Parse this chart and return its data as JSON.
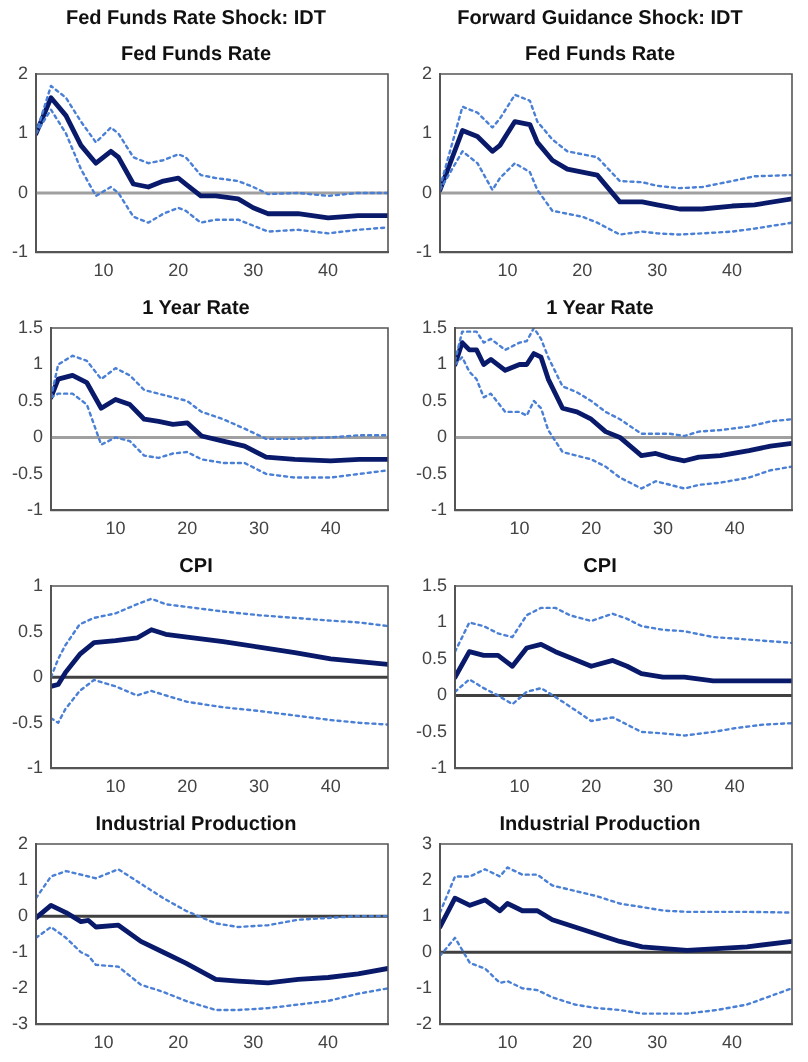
{
  "chart_data": [
    {
      "type": "line",
      "title": "Fed Funds Rate Shock: IDT",
      "subtitle": "Fed Funds Rate",
      "x": [
        1,
        3,
        5,
        7,
        9,
        11,
        12,
        14,
        16,
        18,
        20,
        21,
        23,
        25,
        28,
        30,
        32,
        36,
        40,
        44,
        48
      ],
      "xlim": [
        1,
        48
      ],
      "xticks": [
        10,
        20,
        30,
        40
      ],
      "ylim": [
        -1,
        2
      ],
      "yticks": [
        -1,
        0,
        1,
        2
      ],
      "ref_lines": [
        {
          "axis": "y",
          "value": 0,
          "color": "#a0a0a0"
        }
      ],
      "series": [
        {
          "color": "#4a7fd6",
          "line_style": "dotted",
          "values": [
            1.0,
            1.8,
            1.6,
            1.2,
            0.85,
            1.1,
            1.0,
            0.6,
            0.5,
            0.55,
            0.65,
            0.6,
            0.3,
            0.25,
            0.2,
            0.1,
            -0.02,
            0,
            -0.05,
            0,
            0
          ]
        },
        {
          "color": "#4a7fd6",
          "line_style": "dotted",
          "values": [
            1.0,
            1.4,
            1.0,
            0.4,
            -0.05,
            0.1,
            0.0,
            -0.4,
            -0.5,
            -0.35,
            -0.25,
            -0.3,
            -0.5,
            -0.45,
            -0.45,
            -0.55,
            -0.65,
            -0.62,
            -0.68,
            -0.62,
            -0.58
          ]
        },
        {
          "color": "#0a1a6b",
          "line_style": "solid",
          "values": [
            1.0,
            1.6,
            1.3,
            0.8,
            0.5,
            0.7,
            0.6,
            0.15,
            0.1,
            0.2,
            0.25,
            0.15,
            -0.05,
            -0.05,
            -0.1,
            -0.25,
            -0.35,
            -0.35,
            -0.42,
            -0.38,
            -0.38
          ]
        }
      ]
    },
    {
      "type": "line",
      "title": "Forward Guidance Shock: IDT",
      "subtitle": "Fed Funds Rate",
      "x": [
        1,
        4,
        6,
        8,
        9,
        11,
        13,
        14,
        16,
        18,
        20,
        22,
        25,
        28,
        30,
        33,
        36,
        40,
        43,
        48
      ],
      "xlim": [
        1,
        48
      ],
      "xticks": [
        10,
        20,
        30,
        40
      ],
      "ylim": [
        -1,
        2
      ],
      "yticks": [
        -1,
        0,
        1,
        2
      ],
      "ref_lines": [
        {
          "axis": "y",
          "value": 0,
          "color": "#a0a0a0"
        }
      ],
      "series": [
        {
          "color": "#4a7fd6",
          "line_style": "dotted",
          "values": [
            0.1,
            1.45,
            1.35,
            1.1,
            1.25,
            1.65,
            1.55,
            1.2,
            0.9,
            0.7,
            0.65,
            0.6,
            0.2,
            0.18,
            0.12,
            0.08,
            0.1,
            0.2,
            0.28,
            0.3
          ]
        },
        {
          "color": "#4a7fd6",
          "line_style": "dotted",
          "values": [
            0.05,
            0.7,
            0.5,
            0.05,
            0.25,
            0.5,
            0.35,
            0.05,
            -0.3,
            -0.35,
            -0.4,
            -0.5,
            -0.7,
            -0.65,
            -0.68,
            -0.7,
            -0.68,
            -0.65,
            -0.6,
            -0.5
          ]
        },
        {
          "color": "#0a1a6b",
          "line_style": "solid",
          "values": [
            0.05,
            1.05,
            0.95,
            0.7,
            0.8,
            1.2,
            1.15,
            0.85,
            0.55,
            0.4,
            0.35,
            0.3,
            -0.15,
            -0.15,
            -0.2,
            -0.27,
            -0.27,
            -0.22,
            -0.2,
            -0.1
          ]
        }
      ]
    },
    {
      "type": "line",
      "title": "1 Year Rate",
      "x": [
        1,
        2,
        4,
        6,
        8,
        10,
        12,
        14,
        16,
        18,
        20,
        22,
        25,
        28,
        31,
        35,
        40,
        44,
        48
      ],
      "xlim": [
        1,
        48
      ],
      "xticks": [
        10,
        20,
        30,
        40
      ],
      "ylim": [
        -1,
        1.5
      ],
      "yticks": [
        -1,
        -0.5,
        0,
        0.5,
        1,
        1.5
      ],
      "ref_lines": [
        {
          "axis": "y",
          "value": 0,
          "color": "#a0a0a0"
        }
      ],
      "series": [
        {
          "color": "#4a7fd6",
          "line_style": "dotted",
          "values": [
            0.55,
            1.0,
            1.12,
            1.05,
            0.8,
            0.95,
            0.85,
            0.65,
            0.6,
            0.55,
            0.5,
            0.35,
            0.25,
            0.12,
            -0.02,
            -0.02,
            0,
            0.03,
            0.03
          ]
        },
        {
          "color": "#4a7fd6",
          "line_style": "dotted",
          "values": [
            0.55,
            0.6,
            0.6,
            0.45,
            -0.1,
            0.0,
            -0.05,
            -0.25,
            -0.28,
            -0.22,
            -0.2,
            -0.3,
            -0.35,
            -0.35,
            -0.5,
            -0.55,
            -0.55,
            -0.5,
            -0.45
          ]
        },
        {
          "color": "#0a1a6b",
          "line_style": "solid",
          "values": [
            0.55,
            0.8,
            0.85,
            0.75,
            0.4,
            0.52,
            0.45,
            0.25,
            0.22,
            0.18,
            0.2,
            0.02,
            -0.05,
            -0.12,
            -0.27,
            -0.3,
            -0.32,
            -0.3,
            -0.3
          ]
        }
      ]
    },
    {
      "type": "line",
      "title": "1 Year Rate",
      "x": [
        1,
        2,
        3,
        4,
        5,
        6,
        8,
        10,
        11,
        12,
        13,
        14,
        16,
        18,
        20,
        22,
        24,
        27,
        29,
        31,
        33,
        35,
        38,
        42,
        45,
        48
      ],
      "xlim": [
        1,
        48
      ],
      "xticks": [
        10,
        20,
        30,
        40
      ],
      "ylim": [
        -1,
        1.5
      ],
      "yticks": [
        -1,
        -0.5,
        0,
        0.5,
        1,
        1.5
      ],
      "ref_lines": [
        {
          "axis": "y",
          "value": 0,
          "color": "#a0a0a0"
        }
      ],
      "series": [
        {
          "color": "#4a7fd6",
          "line_style": "dotted",
          "values": [
            1.05,
            1.45,
            1.45,
            1.45,
            1.3,
            1.35,
            1.2,
            1.3,
            1.32,
            1.5,
            1.35,
            1.1,
            0.7,
            0.62,
            0.5,
            0.35,
            0.25,
            0.05,
            0.05,
            0.05,
            0.02,
            0.08,
            0.1,
            0.15,
            0.22,
            0.25
          ]
        },
        {
          "color": "#4a7fd6",
          "line_style": "dotted",
          "values": [
            1.0,
            1.1,
            0.9,
            0.8,
            0.55,
            0.6,
            0.35,
            0.35,
            0.3,
            0.5,
            0.4,
            0.1,
            -0.2,
            -0.25,
            -0.3,
            -0.4,
            -0.55,
            -0.7,
            -0.6,
            -0.65,
            -0.7,
            -0.65,
            -0.62,
            -0.55,
            -0.45,
            -0.4
          ]
        },
        {
          "color": "#0a1a6b",
          "line_style": "solid",
          "values": [
            1.0,
            1.3,
            1.2,
            1.2,
            1.0,
            1.07,
            0.92,
            1.0,
            1.0,
            1.15,
            1.1,
            0.8,
            0.4,
            0.35,
            0.25,
            0.08,
            0.0,
            -0.25,
            -0.22,
            -0.28,
            -0.32,
            -0.27,
            -0.25,
            -0.18,
            -0.12,
            -0.08
          ]
        }
      ]
    },
    {
      "type": "line",
      "title": "CPI",
      "x": [
        1,
        2,
        3,
        5,
        7,
        10,
        13,
        15,
        17,
        20,
        25,
        30,
        35,
        40,
        44,
        48
      ],
      "xlim": [
        1,
        48
      ],
      "xticks": [
        10,
        20,
        30,
        40
      ],
      "ylim": [
        -1,
        1
      ],
      "yticks": [
        -1,
        -0.5,
        0,
        0.5,
        1
      ],
      "ref_lines": [
        {
          "axis": "y",
          "value": 0,
          "color": "#404040"
        }
      ],
      "series": [
        {
          "color": "#4a7fd6",
          "line_style": "dotted",
          "values": [
            0,
            0.2,
            0.35,
            0.58,
            0.65,
            0.7,
            0.8,
            0.86,
            0.8,
            0.77,
            0.72,
            0.68,
            0.65,
            0.62,
            0.6,
            0.56
          ]
        },
        {
          "color": "#4a7fd6",
          "line_style": "dotted",
          "values": [
            -0.45,
            -0.5,
            -0.35,
            -0.15,
            -0.03,
            -0.1,
            -0.2,
            -0.15,
            -0.2,
            -0.27,
            -0.33,
            -0.37,
            -0.42,
            -0.47,
            -0.5,
            -0.52
          ]
        },
        {
          "color": "#0a1a6b",
          "line_style": "solid",
          "values": [
            -0.1,
            -0.08,
            0.05,
            0.25,
            0.38,
            0.4,
            0.43,
            0.52,
            0.47,
            0.44,
            0.39,
            0.33,
            0.27,
            0.2,
            0.17,
            0.14
          ]
        }
      ]
    },
    {
      "type": "line",
      "title": "CPI",
      "x": [
        1,
        3,
        5,
        7,
        9,
        11,
        13,
        15,
        17,
        20,
        23,
        25,
        27,
        30,
        33,
        37,
        40,
        44,
        48
      ],
      "xlim": [
        1,
        48
      ],
      "xticks": [
        10,
        20,
        30,
        40
      ],
      "ylim": [
        -1,
        1.5
      ],
      "yticks": [
        -1,
        -0.5,
        0,
        0.5,
        1,
        1.5
      ],
      "ref_lines": [
        {
          "axis": "y",
          "value": 0,
          "color": "#404040"
        }
      ],
      "series": [
        {
          "color": "#4a7fd6",
          "line_style": "dotted",
          "values": [
            0.6,
            1.0,
            0.95,
            0.85,
            0.8,
            1.1,
            1.2,
            1.2,
            1.1,
            1.02,
            1.12,
            1.05,
            0.95,
            0.9,
            0.88,
            0.8,
            0.78,
            0.75,
            0.72
          ]
        },
        {
          "color": "#4a7fd6",
          "line_style": "dotted",
          "values": [
            0.05,
            0.22,
            0.1,
            0.0,
            -0.12,
            0.05,
            0.1,
            -0.02,
            -0.15,
            -0.35,
            -0.3,
            -0.4,
            -0.5,
            -0.52,
            -0.55,
            -0.5,
            -0.45,
            -0.4,
            -0.38
          ]
        },
        {
          "color": "#0a1a6b",
          "line_style": "solid",
          "values": [
            0.25,
            0.6,
            0.55,
            0.55,
            0.4,
            0.65,
            0.7,
            0.6,
            0.52,
            0.4,
            0.48,
            0.4,
            0.3,
            0.25,
            0.25,
            0.2,
            0.2,
            0.2,
            0.2
          ]
        }
      ]
    },
    {
      "type": "line",
      "title": "Industrial Production",
      "x": [
        1,
        3,
        5,
        7,
        8,
        9,
        12,
        15,
        18,
        21,
        25,
        28,
        32,
        36,
        40,
        44,
        48
      ],
      "xlim": [
        1,
        48
      ],
      "xticks": [
        10,
        20,
        30,
        40
      ],
      "ylim": [
        -3,
        2
      ],
      "yticks": [
        -3,
        -2,
        -1,
        0,
        1,
        2
      ],
      "ref_lines": [
        {
          "axis": "y",
          "value": 0,
          "color": "#404040"
        }
      ],
      "series": [
        {
          "color": "#4a7fd6",
          "line_style": "dotted",
          "values": [
            0.5,
            1.1,
            1.25,
            1.15,
            1.1,
            1.05,
            1.3,
            0.9,
            0.5,
            0.15,
            -0.2,
            -0.3,
            -0.25,
            -0.1,
            -0.05,
            0,
            0
          ]
        },
        {
          "color": "#4a7fd6",
          "line_style": "dotted",
          "values": [
            -0.6,
            -0.3,
            -0.6,
            -1.0,
            -1.1,
            -1.35,
            -1.4,
            -1.9,
            -2.1,
            -2.35,
            -2.6,
            -2.6,
            -2.55,
            -2.45,
            -2.35,
            -2.15,
            -2.0
          ]
        },
        {
          "color": "#0a1a6b",
          "line_style": "solid",
          "values": [
            -0.05,
            0.3,
            0.1,
            -0.15,
            -0.12,
            -0.3,
            -0.25,
            -0.7,
            -1.0,
            -1.3,
            -1.75,
            -1.8,
            -1.85,
            -1.75,
            -1.7,
            -1.6,
            -1.45
          ]
        }
      ]
    },
    {
      "type": "line",
      "title": "Industrial Production",
      "x": [
        1,
        3,
        5,
        7,
        9,
        10,
        12,
        14,
        16,
        19,
        22,
        25,
        28,
        31,
        34,
        38,
        42,
        48
      ],
      "xlim": [
        1,
        48
      ],
      "xticks": [
        10,
        20,
        30,
        40
      ],
      "ylim": [
        -2,
        3
      ],
      "yticks": [
        -2,
        -1,
        0,
        1,
        2,
        3
      ],
      "ref_lines": [
        {
          "axis": "y",
          "value": 0,
          "color": "#404040"
        }
      ],
      "series": [
        {
          "color": "#4a7fd6",
          "line_style": "dotted",
          "values": [
            1.1,
            2.1,
            2.1,
            2.3,
            2.1,
            2.35,
            2.15,
            2.15,
            1.85,
            1.7,
            1.55,
            1.35,
            1.25,
            1.15,
            1.12,
            1.12,
            1.12,
            1.1
          ]
        },
        {
          "color": "#4a7fd6",
          "line_style": "dotted",
          "values": [
            -0.1,
            0.4,
            -0.3,
            -0.45,
            -0.85,
            -0.8,
            -1.0,
            -1.05,
            -1.25,
            -1.45,
            -1.55,
            -1.6,
            -1.7,
            -1.7,
            -1.7,
            -1.6,
            -1.45,
            -1.0
          ]
        },
        {
          "color": "#0a1a6b",
          "line_style": "solid",
          "values": [
            0.7,
            1.5,
            1.3,
            1.45,
            1.15,
            1.35,
            1.15,
            1.15,
            0.9,
            0.7,
            0.5,
            0.3,
            0.15,
            0.1,
            0.05,
            0.1,
            0.15,
            0.3
          ]
        }
      ]
    }
  ]
}
